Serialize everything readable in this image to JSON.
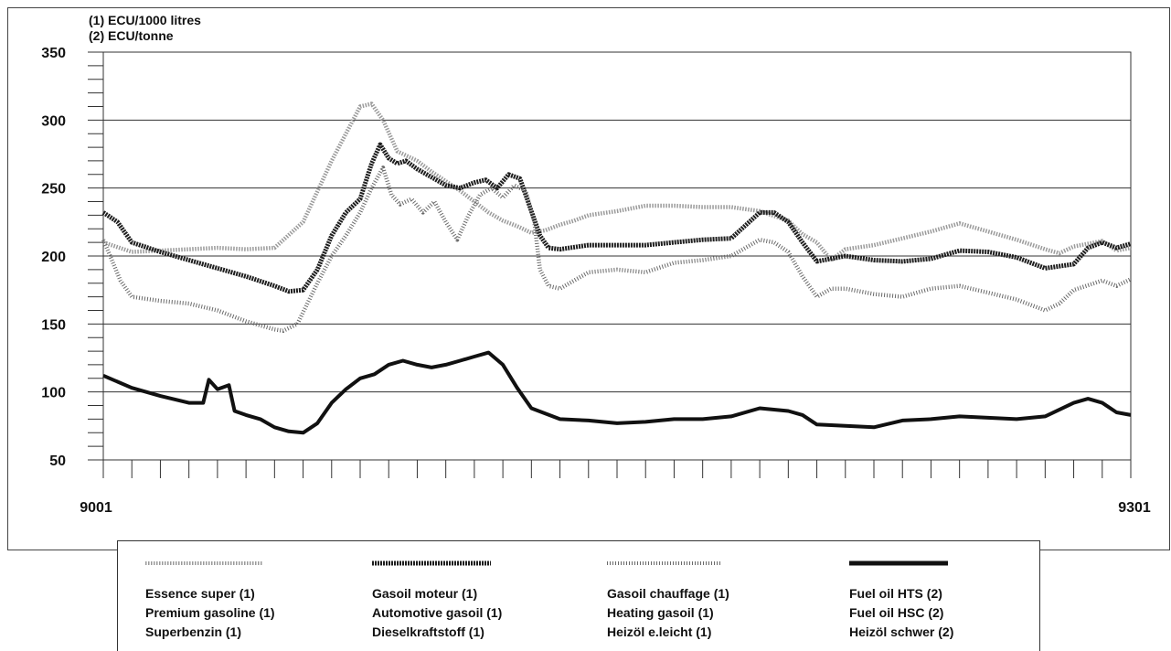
{
  "units": [
    "(1) ECU/1000 litres",
    "(2) ECU/tonne"
  ],
  "legend": [
    {
      "labels": [
        "Essence super (1)",
        "Premium gasoline (1)",
        "Superbenzin (1)"
      ]
    },
    {
      "labels": [
        "Gasoil moteur (1)",
        "Automotive gasoil (1)",
        "Dieselkraftstoff (1)"
      ]
    },
    {
      "labels": [
        "Gasoil chauffage (1)",
        "Heating gasoil (1)",
        "Heizöl e.leicht (1)"
      ]
    },
    {
      "labels": [
        "Fuel oil HTS (2)",
        "Fuel oil HSC (2)",
        "Heizöl schwer (2)"
      ]
    }
  ],
  "chart_data": {
    "type": "line",
    "title": "",
    "xlabel": "",
    "ylabel": "",
    "x_tick_labels": [
      "9001",
      "9301"
    ],
    "x_range": [
      0,
      36
    ],
    "ylim": [
      50,
      350
    ],
    "yticks": [
      50,
      100,
      150,
      200,
      250,
      300,
      350
    ],
    "grid": "horizontal",
    "legend_position": "bottom",
    "series": [
      {
        "name": "Essence super (1)",
        "style": "dotted-light",
        "color": "#9a9a9a",
        "points": [
          [
            0,
            210
          ],
          [
            1,
            203
          ],
          [
            2,
            204
          ],
          [
            3,
            205
          ],
          [
            4,
            206
          ],
          [
            5,
            205
          ],
          [
            6,
            206
          ],
          [
            7,
            225
          ],
          [
            8,
            270
          ],
          [
            8.5,
            290
          ],
          [
            9,
            310
          ],
          [
            9.4,
            312
          ],
          [
            9.8,
            300
          ],
          [
            10.3,
            277
          ],
          [
            11,
            270
          ],
          [
            11.5,
            262
          ],
          [
            12,
            255
          ],
          [
            12.5,
            248
          ],
          [
            13,
            240
          ],
          [
            13.5,
            232
          ],
          [
            14,
            226
          ],
          [
            14.5,
            222
          ],
          [
            15,
            217
          ],
          [
            15.5,
            219
          ],
          [
            16,
            223
          ],
          [
            16.5,
            226
          ],
          [
            17,
            230
          ],
          [
            18,
            233
          ],
          [
            19,
            237
          ],
          [
            20,
            237
          ],
          [
            21,
            236
          ],
          [
            22,
            236
          ],
          [
            23,
            233
          ],
          [
            24,
            226
          ],
          [
            24.5,
            216
          ],
          [
            25,
            210
          ],
          [
            25.5,
            197
          ],
          [
            26,
            205
          ],
          [
            27,
            208
          ],
          [
            28,
            213
          ],
          [
            29,
            218
          ],
          [
            30,
            224
          ],
          [
            31,
            218
          ],
          [
            32,
            212
          ],
          [
            33,
            205
          ],
          [
            33.5,
            202
          ],
          [
            34,
            207
          ],
          [
            35,
            211
          ],
          [
            35.5,
            204
          ],
          [
            36,
            206
          ]
        ]
      },
      {
        "name": "Gasoil moteur (1)",
        "style": "thick-dark",
        "color": "#1e1e1e",
        "points": [
          [
            0,
            232
          ],
          [
            0.5,
            225
          ],
          [
            1,
            210
          ],
          [
            2,
            203
          ],
          [
            3,
            197
          ],
          [
            4,
            191
          ],
          [
            5,
            185
          ],
          [
            6,
            178
          ],
          [
            6.5,
            174
          ],
          [
            7,
            175
          ],
          [
            7.5,
            190
          ],
          [
            8,
            215
          ],
          [
            8.5,
            232
          ],
          [
            9,
            242
          ],
          [
            9.4,
            268
          ],
          [
            9.7,
            282
          ],
          [
            10,
            272
          ],
          [
            10.3,
            268
          ],
          [
            10.6,
            270
          ],
          [
            11,
            264
          ],
          [
            11.5,
            258
          ],
          [
            12,
            252
          ],
          [
            12.5,
            250
          ],
          [
            13,
            254
          ],
          [
            13.4,
            256
          ],
          [
            13.8,
            250
          ],
          [
            14.2,
            260
          ],
          [
            14.6,
            257
          ],
          [
            15,
            233
          ],
          [
            15.3,
            215
          ],
          [
            15.6,
            206
          ],
          [
            16,
            205
          ],
          [
            17,
            208
          ],
          [
            18,
            208
          ],
          [
            19,
            208
          ],
          [
            20,
            210
          ],
          [
            21,
            212
          ],
          [
            22,
            213
          ],
          [
            23,
            232
          ],
          [
            23.5,
            232
          ],
          [
            24,
            225
          ],
          [
            24.5,
            210
          ],
          [
            25,
            196
          ],
          [
            25.5,
            198
          ],
          [
            26,
            200
          ],
          [
            27,
            197
          ],
          [
            28,
            196
          ],
          [
            29,
            198
          ],
          [
            30,
            204
          ],
          [
            31,
            203
          ],
          [
            32,
            199
          ],
          [
            33,
            191
          ],
          [
            34,
            194
          ],
          [
            34.5,
            206
          ],
          [
            35,
            210
          ],
          [
            35.5,
            206
          ],
          [
            36,
            209
          ]
        ]
      },
      {
        "name": "Gasoil chauffage (1)",
        "style": "hatched",
        "color": "#6a6a6a",
        "points": [
          [
            0,
            212
          ],
          [
            0.3,
            197
          ],
          [
            0.6,
            182
          ],
          [
            1,
            170
          ],
          [
            2,
            167
          ],
          [
            3,
            165
          ],
          [
            4,
            160
          ],
          [
            5,
            152
          ],
          [
            6,
            146
          ],
          [
            6.3,
            145
          ],
          [
            6.8,
            150
          ],
          [
            7.5,
            180
          ],
          [
            8,
            200
          ],
          [
            8.5,
            215
          ],
          [
            9,
            232
          ],
          [
            9.4,
            250
          ],
          [
            9.8,
            265
          ],
          [
            10.1,
            245
          ],
          [
            10.4,
            238
          ],
          [
            10.8,
            242
          ],
          [
            11.2,
            232
          ],
          [
            11.6,
            240
          ],
          [
            12,
            225
          ],
          [
            12.4,
            212
          ],
          [
            12.8,
            230
          ],
          [
            13.2,
            245
          ],
          [
            13.6,
            250
          ],
          [
            14,
            243
          ],
          [
            14.4,
            252
          ],
          [
            14.8,
            248
          ],
          [
            15.1,
            225
          ],
          [
            15.3,
            190
          ],
          [
            15.6,
            178
          ],
          [
            16,
            176
          ],
          [
            17,
            188
          ],
          [
            18,
            190
          ],
          [
            19,
            188
          ],
          [
            20,
            195
          ],
          [
            21,
            197
          ],
          [
            22,
            200
          ],
          [
            23,
            212
          ],
          [
            23.5,
            210
          ],
          [
            24,
            203
          ],
          [
            24.5,
            185
          ],
          [
            25,
            170
          ],
          [
            25.5,
            176
          ],
          [
            26,
            176
          ],
          [
            27,
            172
          ],
          [
            28,
            170
          ],
          [
            29,
            176
          ],
          [
            30,
            178
          ],
          [
            31,
            173
          ],
          [
            32,
            168
          ],
          [
            33,
            160
          ],
          [
            33.5,
            165
          ],
          [
            34,
            175
          ],
          [
            35,
            182
          ],
          [
            35.5,
            178
          ],
          [
            36,
            183
          ]
        ]
      },
      {
        "name": "Fuel oil HTS (2)",
        "style": "thick-black",
        "color": "#111111",
        "points": [
          [
            0,
            112
          ],
          [
            1,
            103
          ],
          [
            2,
            97
          ],
          [
            3,
            92
          ],
          [
            3.5,
            92
          ],
          [
            3.7,
            109
          ],
          [
            4,
            102
          ],
          [
            4.4,
            105
          ],
          [
            4.6,
            86
          ],
          [
            5,
            83
          ],
          [
            5.5,
            80
          ],
          [
            6,
            74
          ],
          [
            6.5,
            71
          ],
          [
            7,
            70
          ],
          [
            7.5,
            77
          ],
          [
            8,
            92
          ],
          [
            8.5,
            102
          ],
          [
            9,
            110
          ],
          [
            9.5,
            113
          ],
          [
            10,
            120
          ],
          [
            10.5,
            123
          ],
          [
            11,
            120
          ],
          [
            11.5,
            118
          ],
          [
            12,
            120
          ],
          [
            12.5,
            123
          ],
          [
            13,
            126
          ],
          [
            13.5,
            129
          ],
          [
            14,
            120
          ],
          [
            14.5,
            103
          ],
          [
            15,
            88
          ],
          [
            16,
            80
          ],
          [
            17,
            79
          ],
          [
            18,
            77
          ],
          [
            19,
            78
          ],
          [
            20,
            80
          ],
          [
            21,
            80
          ],
          [
            22,
            82
          ],
          [
            23,
            88
          ],
          [
            24,
            86
          ],
          [
            24.5,
            83
          ],
          [
            25,
            76
          ],
          [
            26,
            75
          ],
          [
            27,
            74
          ],
          [
            28,
            79
          ],
          [
            29,
            80
          ],
          [
            30,
            82
          ],
          [
            31,
            81
          ],
          [
            32,
            80
          ],
          [
            33,
            82
          ],
          [
            34,
            92
          ],
          [
            34.5,
            95
          ],
          [
            35,
            92
          ],
          [
            35.5,
            85
          ],
          [
            36,
            83
          ]
        ]
      }
    ]
  }
}
